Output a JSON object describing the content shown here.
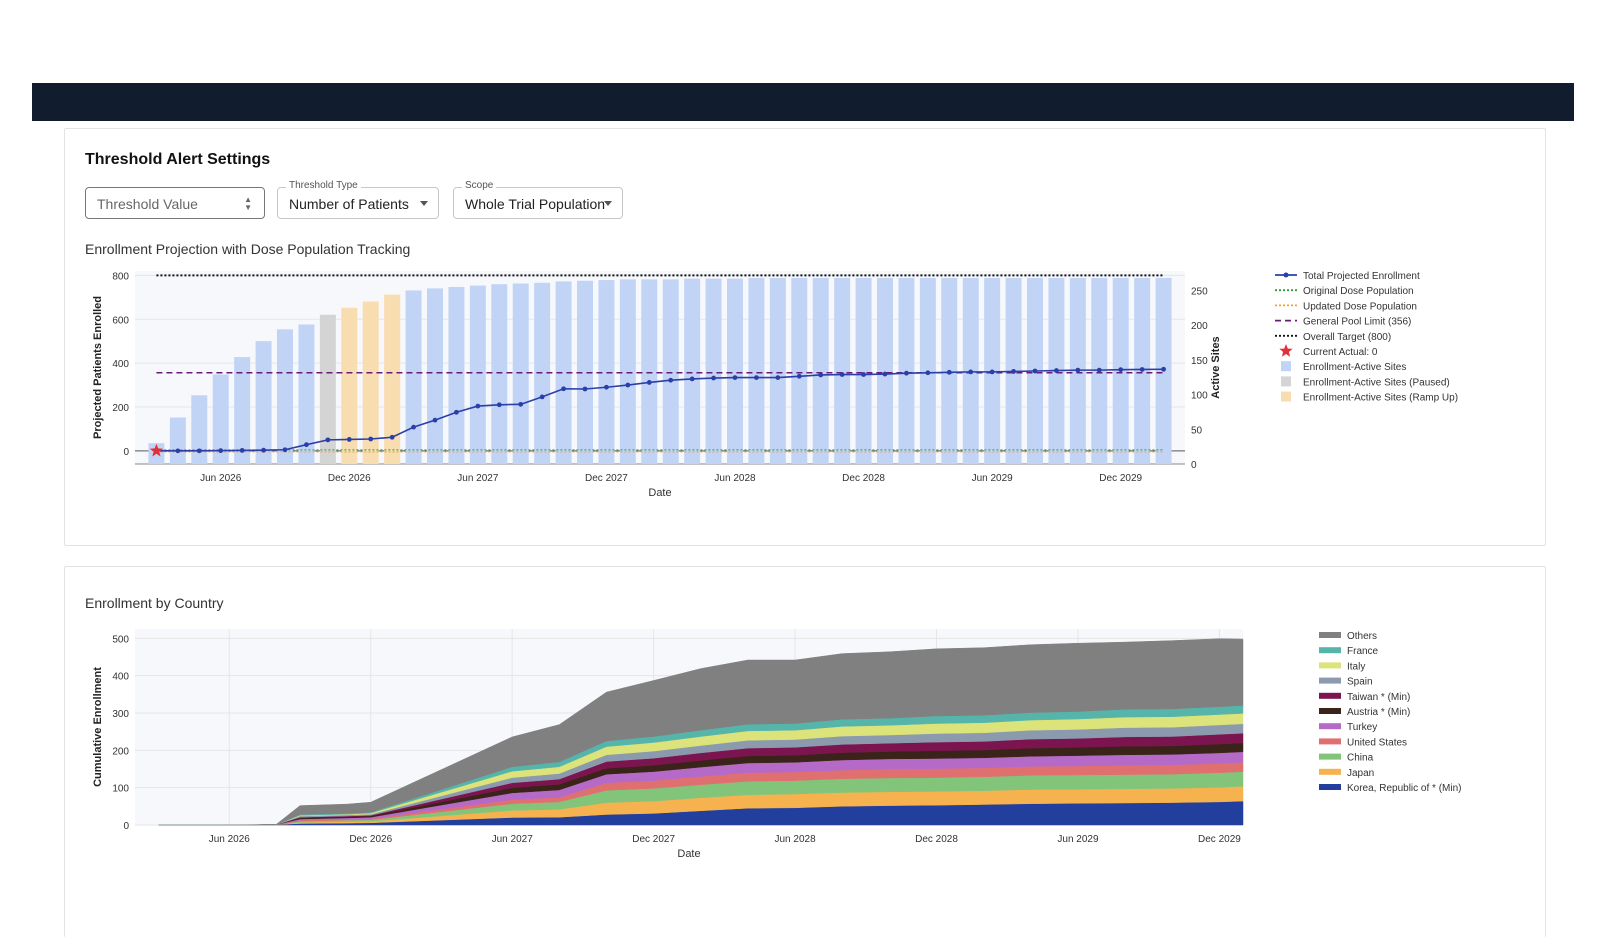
{
  "settings": {
    "title": "Threshold Alert Settings",
    "threshold_placeholder": "Threshold Value",
    "threshold_type": {
      "label": "Threshold Type",
      "value": "Number of Patients"
    },
    "scope": {
      "label": "Scope",
      "value": "Whole Trial Population"
    }
  },
  "chart1_title": "Enrollment Projection with Dose Population Tracking",
  "chart2_title": "Enrollment by Country",
  "colors": {
    "topbar": "#111d2e",
    "line": "#2b3fa8",
    "bar_active": "#c2d4f6",
    "bar_paused": "#d4d4d4",
    "bar_rampup": "#f8ddb0"
  },
  "chart_data": [
    {
      "type": "bar",
      "xlabel": "Date",
      "ylabel": "Projected Patients Enrolled",
      "y2label": "Active Sites",
      "ylim": [
        -60,
        820
      ],
      "y2lim": [
        0,
        278
      ],
      "yticks": [
        0,
        200,
        400,
        600,
        800
      ],
      "y2ticks": [
        0,
        50,
        100,
        150,
        200,
        250
      ],
      "xtick_labels": [
        "Jun 2026",
        "Dec 2026",
        "Jun 2027",
        "Dec 2027",
        "Jun 2028",
        "Dec 2028",
        "Jun 2029",
        "Dec 2029"
      ],
      "legend": [
        "Total Projected Enrollment",
        "Original Dose Population",
        "Updated Dose Population",
        "General Pool Limit (356)",
        "Overall Target (800)",
        "Current Actual: 0",
        "Enrollment-Active Sites",
        "Enrollment-Active Sites (Paused)",
        "Enrollment-Active Sites (Ramp Up)"
      ],
      "months": [
        "2026-03",
        "2026-04",
        "2026-05",
        "2026-06",
        "2026-07",
        "2026-08",
        "2026-09",
        "2026-10",
        "2026-11",
        "2026-12",
        "2027-01",
        "2027-02",
        "2027-03",
        "2027-04",
        "2027-05",
        "2027-06",
        "2027-07",
        "2027-08",
        "2027-09",
        "2027-10",
        "2027-11",
        "2027-12",
        "2028-01",
        "2028-02",
        "2028-03",
        "2028-04",
        "2028-05",
        "2028-06",
        "2028-07",
        "2028-08",
        "2028-09",
        "2028-10",
        "2028-11",
        "2028-12",
        "2029-01",
        "2029-02",
        "2029-03",
        "2029-04",
        "2029-05",
        "2029-06",
        "2029-07",
        "2029-08",
        "2029-09",
        "2029-10",
        "2029-11",
        "2029-12",
        "2030-01",
        "2030-02"
      ],
      "active_sites": [
        30,
        67,
        99,
        129,
        154,
        177,
        194,
        201,
        215,
        225,
        234,
        244,
        250,
        253,
        255,
        257,
        259,
        260,
        261,
        263,
        264,
        265,
        266,
        266,
        266,
        267,
        267,
        267,
        268,
        268,
        268,
        268,
        268,
        268,
        268,
        268,
        268,
        268,
        268,
        268,
        268,
        268,
        268,
        268,
        268,
        268,
        268,
        268
      ],
      "site_status": [
        "active",
        "active",
        "active",
        "active",
        "active",
        "active",
        "active",
        "active",
        "paused",
        "rampup",
        "rampup",
        "rampup",
        "active",
        "active",
        "active",
        "active",
        "active",
        "active",
        "active",
        "active",
        "active",
        "active",
        "active",
        "active",
        "active",
        "active",
        "active",
        "active",
        "active",
        "active",
        "active",
        "active",
        "active",
        "active",
        "active",
        "active",
        "active",
        "active",
        "active",
        "active",
        "active",
        "active",
        "active",
        "active",
        "active",
        "active",
        "active",
        "active"
      ],
      "total_projected_enrollment": [
        0,
        0,
        0,
        1,
        2,
        3,
        5,
        28,
        50,
        52,
        54,
        62,
        108,
        140,
        176,
        204,
        210,
        212,
        246,
        283,
        282,
        290,
        300,
        312,
        322,
        328,
        332,
        334,
        334,
        334,
        340,
        346,
        348,
        348,
        350,
        354,
        356,
        358,
        360,
        360,
        362,
        364,
        366,
        368,
        368,
        370,
        371,
        372
      ],
      "general_pool_limit": 356,
      "overall_target": 800,
      "current_actual": 0
    },
    {
      "type": "area",
      "xlabel": "Date",
      "ylabel": "Cumulative Enrollment",
      "ylim": [
        0,
        525
      ],
      "yticks": [
        0,
        100,
        200,
        300,
        400,
        500
      ],
      "xtick_labels": [
        "Jun 2026",
        "Dec 2026",
        "Jun 2027",
        "Dec 2027",
        "Jun 2028",
        "Dec 2028",
        "Jun 2029",
        "Dec 2029"
      ],
      "months": [
        "2026-03",
        "2026-06",
        "2026-08",
        "2026-09",
        "2026-11",
        "2026-12",
        "2027-06",
        "2027-08",
        "2027-10",
        "2027-12",
        "2028-02",
        "2028-04",
        "2028-06",
        "2028-08",
        "2028-10",
        "2028-12",
        "2029-02",
        "2029-04",
        "2029-06",
        "2029-08",
        "2029-10",
        "2029-12",
        "2030-01"
      ],
      "series": [
        {
          "name": "Korea, Republic of * (Min)",
          "color": "#233f9e",
          "values": [
            0,
            0,
            1,
            4,
            5,
            6,
            20,
            21,
            28,
            31,
            38,
            45,
            46,
            50,
            52,
            53,
            55,
            57,
            58,
            59,
            60,
            62,
            64
          ]
        },
        {
          "name": "Japan",
          "color": "#f5b24e",
          "values": [
            0,
            0,
            0,
            3,
            4,
            4,
            19,
            21,
            32,
            33,
            35,
            36,
            37,
            37,
            37,
            37,
            37,
            38,
            38,
            38,
            38,
            39,
            40
          ]
        },
        {
          "name": "China",
          "color": "#82c57a",
          "values": [
            0,
            0,
            0,
            3,
            4,
            4,
            18,
            20,
            33,
            34,
            35,
            36,
            36,
            37,
            37,
            37,
            37,
            38,
            38,
            38,
            38,
            39,
            39
          ]
        },
        {
          "name": "United States",
          "color": "#e07070",
          "values": [
            0,
            0,
            0,
            3,
            3,
            3,
            11,
            12,
            20,
            21,
            22,
            23,
            23,
            23,
            24,
            24,
            24,
            24,
            24,
            25,
            25,
            25,
            25
          ]
        },
        {
          "name": "Turkey",
          "color": "#b66ac8",
          "values": [
            0,
            0,
            0,
            3,
            3,
            4,
            18,
            20,
            23,
            24,
            25,
            26,
            26,
            27,
            27,
            27,
            27,
            27,
            28,
            28,
            28,
            28,
            28
          ]
        },
        {
          "name": "Austria * (Min)",
          "color": "#3a2419",
          "values": [
            0,
            0,
            0,
            3,
            3,
            3,
            14,
            15,
            16,
            17,
            18,
            19,
            19,
            20,
            20,
            21,
            21,
            22,
            22,
            23,
            23,
            24,
            24
          ]
        },
        {
          "name": "Taiwan * (Min)",
          "color": "#7c154f",
          "values": [
            0,
            0,
            0,
            2,
            2,
            2,
            13,
            14,
            18,
            19,
            20,
            21,
            21,
            22,
            22,
            23,
            23,
            24,
            24,
            25,
            25,
            26,
            26
          ]
        },
        {
          "name": "Spain",
          "color": "#8c9aae",
          "values": [
            0,
            0,
            0,
            3,
            3,
            3,
            14,
            15,
            18,
            19,
            20,
            21,
            21,
            22,
            22,
            23,
            23,
            24,
            24,
            25,
            25,
            25,
            25
          ]
        },
        {
          "name": "Italy",
          "color": "#dbe37a",
          "values": [
            0,
            0,
            0,
            2,
            2,
            3,
            17,
            18,
            22,
            23,
            24,
            25,
            25,
            26,
            26,
            27,
            27,
            27,
            28,
            28,
            28,
            28,
            28
          ]
        },
        {
          "name": "France",
          "color": "#56b5aa",
          "values": [
            0,
            0,
            0,
            2,
            2,
            2,
            12,
            13,
            15,
            16,
            17,
            18,
            18,
            19,
            19,
            20,
            20,
            20,
            20,
            21,
            21,
            21,
            21
          ]
        },
        {
          "name": "Others",
          "color": "#808080",
          "values": [
            0,
            0,
            1,
            24,
            25,
            27,
            80,
            100,
            131,
            150,
            165,
            172,
            170,
            176,
            178,
            180,
            181,
            182,
            183,
            180,
            183,
            182,
            178
          ]
        }
      ]
    }
  ]
}
